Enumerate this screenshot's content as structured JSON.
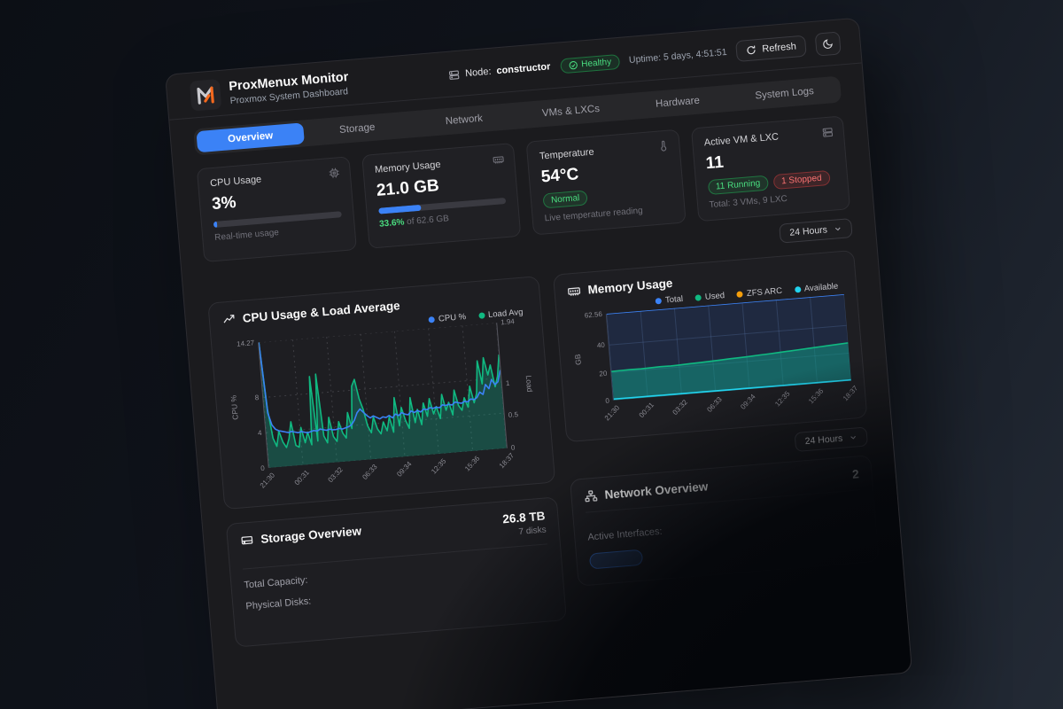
{
  "header": {
    "title": "ProxMenux Monitor",
    "subtitle": "Proxmox System Dashboard",
    "logo_icon": "proxmenux-m-logo"
  },
  "topbar": {
    "node_label": "Node:",
    "node_value": "constructor",
    "node_icon": "server-icon",
    "health_label": "Healthy",
    "health_icon": "check-circle-icon",
    "uptime": "Uptime: 5 days, 4:51:51",
    "refresh_label": "Refresh",
    "refresh_icon": "refresh-icon",
    "theme_icon": "moon-icon"
  },
  "tabs": {
    "items": [
      {
        "label": "Overview",
        "active": true
      },
      {
        "label": "Storage",
        "active": false
      },
      {
        "label": "Network",
        "active": false
      },
      {
        "label": "VMs & LXCs",
        "active": false
      },
      {
        "label": "Hardware",
        "active": false
      },
      {
        "label": "System Logs",
        "active": false
      }
    ]
  },
  "stat_cards": {
    "cpu": {
      "title": "CPU Usage",
      "icon": "cpu-icon",
      "value": "3%",
      "percent": 3,
      "sub": "Real-time usage"
    },
    "memory": {
      "title": "Memory Usage",
      "icon": "memory-icon",
      "value": "21.0 GB",
      "percent": 33.6,
      "sub_highlight": "33.6%",
      "sub_rest": " of 62.6 GB"
    },
    "temperature": {
      "title": "Temperature",
      "icon": "thermometer-icon",
      "value": "54°C",
      "badge": "Normal",
      "sub": "Live temperature reading"
    },
    "vms": {
      "title": "Active VM & LXC",
      "icon": "server-stack-icon",
      "value": "11",
      "badge_running": "11 Running",
      "badge_stopped": "1 Stopped",
      "sub": "Total: 3 VMs, 9 LXC"
    }
  },
  "time_selector": {
    "label": "24 Hours",
    "icon": "chevron-down-icon"
  },
  "storage": {
    "title": "Storage Overview",
    "icon": "hard-drive-icon",
    "capacity_value": "26.8 TB",
    "disks_value": "7 disks",
    "row1_label": "Total Capacity:",
    "row2_label": "Physical Disks:"
  },
  "network": {
    "title": "Network Overview",
    "icon": "network-icon",
    "count": "2",
    "interfaces_label": "Active Interfaces:"
  },
  "colors": {
    "accent_blue": "#3b82f6",
    "green": "#10b981",
    "light_green": "#4ade80",
    "cyan": "#22d3ee",
    "orange": "#f59e0b",
    "red": "#ef4444",
    "memory_plot_bg": "#1f2940",
    "page_bg": "#1b1b1e"
  },
  "chart_data": [
    {
      "type": "line",
      "title": "CPU Usage & Load Average",
      "title_icon": "trending-up-icon",
      "legend": [
        {
          "name": "CPU %",
          "color": "#3b82f6"
        },
        {
          "name": "Load Avg",
          "color": "#10b981"
        }
      ],
      "x_ticks": [
        "21:30",
        "00:31",
        "03:32",
        "06:33",
        "09:34",
        "12:35",
        "15:36",
        "18:37"
      ],
      "y_left": {
        "label": "CPU %",
        "ticks": [
          14.27,
          8,
          4,
          0
        ],
        "max": 14.27
      },
      "y_right": {
        "label": "Load",
        "ticks": [
          1.94,
          1,
          0.5,
          0
        ],
        "max": 1.94
      },
      "grid": "dotted",
      "series": [
        {
          "name": "CPU %",
          "axis": "left",
          "color": "#3b82f6",
          "values": [
            14.27,
            6.2,
            4.8,
            4.3,
            4.1,
            4.0,
            3.9,
            3.8,
            3.9,
            3.8,
            3.7,
            3.8,
            3.7,
            3.6,
            3.7,
            3.8,
            3.7,
            3.9,
            3.8,
            3.7,
            3.8,
            3.7,
            3.7,
            3.8,
            3.7,
            3.8,
            3.9,
            4.1,
            4.6,
            5.4,
            5.8,
            5.4,
            5.0,
            4.7,
            4.9,
            4.7,
            4.5,
            4.7,
            4.6,
            4.8,
            4.5,
            4.9,
            4.7,
            5.0,
            4.8,
            4.7,
            5.1,
            4.9,
            5.1,
            4.9,
            5.2,
            5.1,
            5.3,
            5.2,
            5.3,
            5.2,
            5.5,
            5.4,
            5.5,
            5.4,
            5.7,
            5.6,
            5.5,
            5.7,
            5.6,
            5.9,
            5.8,
            6.0,
            6.6,
            6.3,
            7.4,
            6.9,
            7.9,
            7.3,
            7.6,
            8.9
          ]
        },
        {
          "name": "Load Avg",
          "axis": "right",
          "color": "#10b981",
          "area_fill": "rgba(20,184,150,0.30)",
          "values": [
            1.94,
            0.9,
            0.45,
            0.32,
            0.55,
            0.38,
            0.29,
            0.42,
            0.68,
            0.31,
            0.28,
            0.58,
            0.34,
            0.5,
            0.3,
            1.35,
            0.35,
            1.38,
            0.42,
            0.31,
            0.7,
            0.4,
            0.32,
            0.62,
            0.44,
            0.36,
            0.75,
            0.5,
            1.15,
            1.25,
            0.95,
            0.78,
            0.52,
            0.41,
            0.65,
            0.46,
            0.38,
            0.56,
            0.42,
            0.63,
            0.39,
            0.92,
            0.48,
            0.76,
            0.56,
            0.43,
            0.9,
            0.51,
            0.71,
            0.47,
            0.8,
            0.59,
            0.86,
            0.62,
            0.73,
            0.54,
            0.91,
            0.66,
            0.78,
            0.58,
            0.96,
            0.72,
            0.64,
            0.83,
            0.68,
            1.0,
            0.74,
            0.88,
            1.38,
            1.02,
            1.42,
            1.15,
            1.3,
            0.96,
            1.12,
            1.45
          ]
        }
      ]
    },
    {
      "type": "area",
      "title": "Memory Usage",
      "title_icon": "memory-icon",
      "legend": [
        {
          "name": "Total",
          "color": "#3b82f6"
        },
        {
          "name": "Used",
          "color": "#10b981"
        },
        {
          "name": "ZFS ARC",
          "color": "#f59e0b"
        },
        {
          "name": "Available",
          "color": "#22d3ee"
        }
      ],
      "x_ticks": [
        "21:30",
        "00:31",
        "03:32",
        "06:33",
        "09:34",
        "12:35",
        "15:36",
        "18:37"
      ],
      "y": {
        "label": "GB",
        "ticks": [
          62.56,
          40,
          20,
          0
        ],
        "max": 62.56
      },
      "grid": "solid",
      "series": [
        {
          "name": "Total",
          "color": "#3b82f6",
          "draw": "line",
          "values": [
            62.56,
            62.56,
            62.56,
            62.56,
            62.56,
            62.56,
            62.56,
            62.56,
            62.56,
            62.56,
            62.56,
            62.56,
            62.56,
            62.56,
            62.56,
            62.56,
            62.56,
            62.56,
            62.56,
            62.56,
            62.56,
            62.56,
            62.56,
            62.56,
            62.56
          ]
        },
        {
          "name": "Used",
          "color": "#10b981",
          "draw": "area",
          "area_fill": "rgba(16,150,130,0.55)",
          "values": [
            20.8,
            21.0,
            21.1,
            21.0,
            21.2,
            21.4,
            21.3,
            21.5,
            21.8,
            22.0,
            22.3,
            22.6,
            23.0,
            23.2,
            23.5,
            23.9,
            24.2,
            24.6,
            25.0,
            25.4,
            25.8,
            26.2,
            26.6,
            27.0,
            27.4
          ]
        },
        {
          "name": "ZFS ARC",
          "color": "#f59e0b",
          "draw": "hidden",
          "values": [
            3.5,
            3.5,
            3.5,
            3.5,
            3.5,
            3.6,
            3.6,
            3.6,
            3.6,
            3.7,
            3.7,
            3.7,
            3.7,
            3.8,
            3.8,
            3.8,
            3.8,
            3.9,
            3.9,
            3.9,
            3.9,
            4.0,
            4.0,
            4.0,
            4.0
          ]
        },
        {
          "name": "Available",
          "color": "#22d3ee",
          "draw": "line",
          "values": [
            0.9,
            0.9,
            0.85,
            0.85,
            0.85,
            0.8,
            0.8,
            0.8,
            0.8,
            0.8,
            0.75,
            0.75,
            0.75,
            0.75,
            0.75,
            0.7,
            0.7,
            0.7,
            0.7,
            0.7,
            0.7,
            0.7,
            0.7,
            0.7,
            0.7
          ]
        }
      ]
    }
  ]
}
